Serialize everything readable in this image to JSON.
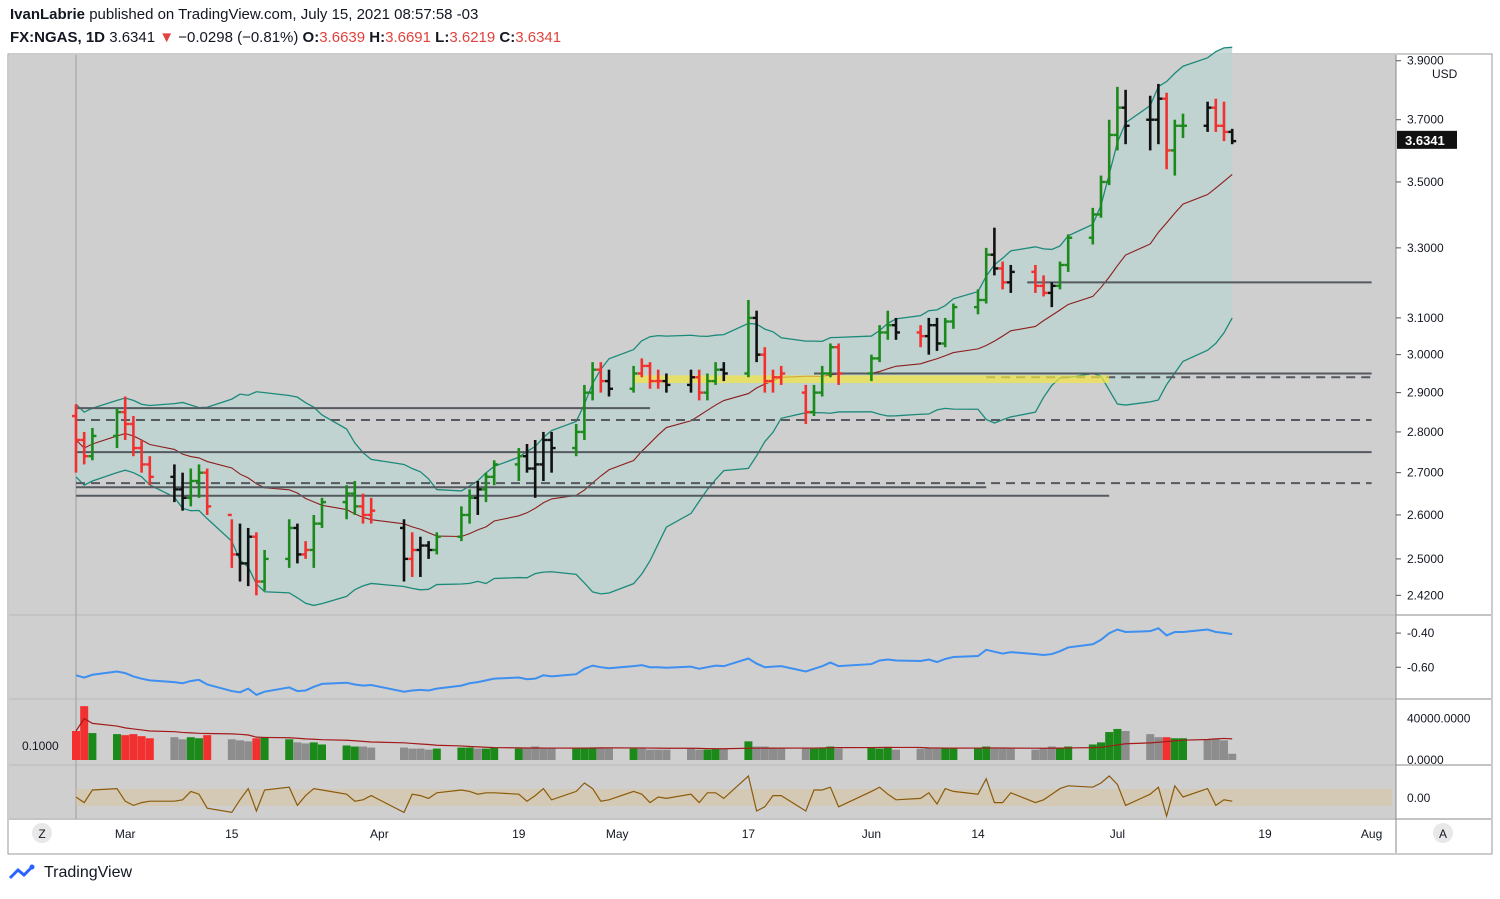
{
  "header": {
    "author": "IvanLabrie",
    "published": "published on TradingView.com, July 15, 2021 08:57:58 -03",
    "symbol": "FX:NGAS, 1D",
    "last": "3.6341",
    "change": "−0.0298 (−0.81%)",
    "o_label": "O:",
    "o_value": "3.6639",
    "h_label": "H:",
    "h_value": "3.6691",
    "l_label": "L:",
    "l_value": "3.6219",
    "c_label": "C:",
    "c_value": "3.6341"
  },
  "footer": {
    "brand": "TradingView"
  },
  "colors": {
    "bg": "#cfcfcf",
    "band_fill": "#bcd3cf",
    "band_line": "#1c8a7a",
    "basis": "#8c1f1f",
    "up": "#1b8a1b",
    "down": "#f23030",
    "neutral": "#111111",
    "hline": "#555a60",
    "osc": "#3d8ff0",
    "vol_avg": "#a31a1a",
    "osc2": "#8c5a0a"
  },
  "chart_data": {
    "type": "ohlc",
    "title": "FX:NGAS, 1D",
    "currency": "USD",
    "last_price_label": "3.6341",
    "y_ticks": [
      "3.9000",
      "3.7000",
      "3.5000",
      "3.3000",
      "3.1000",
      "3.0000",
      "2.9000",
      "2.8000",
      "2.7000",
      "2.6000",
      "2.5000",
      "2.4200"
    ],
    "x_ticks": [
      "Mar",
      "15",
      "Apr",
      "19",
      "May",
      "17",
      "Jun",
      "14",
      "Jul",
      "19",
      "Aug"
    ],
    "osc_ticks": [
      "-0.40",
      "-0.60"
    ],
    "volume_ticks": [
      "40000.0000",
      "0.0000"
    ],
    "volume_left_label": "0.1000",
    "osc2_ticks": [
      "0.00"
    ],
    "corner_labels": {
      "left": "Z",
      "right": "A"
    },
    "x_start": "2021-02-24",
    "hlines": [
      {
        "price": 2.86,
        "style": "solid",
        "from": "2021-02-24",
        "to": "2021-05-05"
      },
      {
        "price": 2.83,
        "style": "dashed",
        "from": "2021-02-24",
        "to": "2021-08-01"
      },
      {
        "price": 2.75,
        "style": "solid",
        "from": "2021-02-24",
        "to": "2021-08-01"
      },
      {
        "price": 2.675,
        "style": "dashed",
        "from": "2021-02-24",
        "to": "2021-08-01"
      },
      {
        "price": 2.665,
        "style": "solid",
        "from": "2021-02-24",
        "to": "2021-06-15"
      },
      {
        "price": 2.645,
        "style": "solid",
        "from": "2021-02-24",
        "to": "2021-06-30"
      },
      {
        "price": 3.2,
        "style": "solid",
        "from": "2021-06-20",
        "to": "2021-08-01"
      },
      {
        "price": 2.95,
        "style": "solid",
        "from": "2021-05-25",
        "to": "2021-08-01"
      },
      {
        "price": 2.94,
        "style": "dashed",
        "from": "2021-06-15",
        "to": "2021-08-01"
      }
    ],
    "series": [
      {
        "d": "2021-02-24",
        "o": 2.84,
        "h": 2.87,
        "l": 2.7,
        "c": 2.78,
        "t": "d",
        "v": 28000
      },
      {
        "d": "2021-02-25",
        "o": 2.78,
        "h": 2.8,
        "l": 2.72,
        "c": 2.74,
        "t": "d",
        "v": 52000
      },
      {
        "d": "2021-02-26",
        "o": 2.74,
        "h": 2.81,
        "l": 2.73,
        "c": 2.79,
        "t": "u",
        "v": 26000
      },
      {
        "d": "2021-03-01",
        "o": 2.79,
        "h": 2.86,
        "l": 2.76,
        "c": 2.85,
        "t": "u",
        "v": 25000
      },
      {
        "d": "2021-03-02",
        "o": 2.85,
        "h": 2.89,
        "l": 2.78,
        "c": 2.82,
        "t": "d",
        "v": 24000
      },
      {
        "d": "2021-03-03",
        "o": 2.82,
        "h": 2.84,
        "l": 2.74,
        "c": 2.76,
        "t": "d",
        "v": 25000
      },
      {
        "d": "2021-03-04",
        "o": 2.76,
        "h": 2.78,
        "l": 2.7,
        "c": 2.72,
        "t": "d",
        "v": 23000
      },
      {
        "d": "2021-03-05",
        "o": 2.72,
        "h": 2.74,
        "l": 2.67,
        "c": 2.69,
        "t": "d",
        "v": 21000
      },
      {
        "d": "2021-03-08",
        "o": 2.69,
        "h": 2.72,
        "l": 2.63,
        "c": 2.66,
        "t": "n",
        "v": 22000
      },
      {
        "d": "2021-03-09",
        "o": 2.66,
        "h": 2.7,
        "l": 2.61,
        "c": 2.64,
        "t": "n",
        "v": 20000
      },
      {
        "d": "2021-03-10",
        "o": 2.64,
        "h": 2.71,
        "l": 2.62,
        "c": 2.68,
        "t": "u",
        "v": 22000
      },
      {
        "d": "2021-03-11",
        "o": 2.68,
        "h": 2.72,
        "l": 2.64,
        "c": 2.7,
        "t": "u",
        "v": 21000
      },
      {
        "d": "2021-03-12",
        "o": 2.7,
        "h": 2.71,
        "l": 2.6,
        "c": 2.62,
        "t": "d",
        "v": 24000
      },
      {
        "d": "2021-03-15",
        "o": 2.6,
        "h": 2.59,
        "l": 2.48,
        "c": 2.51,
        "t": "d",
        "v": 20000
      },
      {
        "d": "2021-03-16",
        "o": 2.51,
        "h": 2.58,
        "l": 2.45,
        "c": 2.49,
        "t": "n",
        "v": 19000
      },
      {
        "d": "2021-03-17",
        "o": 2.49,
        "h": 2.57,
        "l": 2.44,
        "c": 2.55,
        "t": "n",
        "v": 18000
      },
      {
        "d": "2021-03-18",
        "o": 2.55,
        "h": 2.56,
        "l": 2.42,
        "c": 2.45,
        "t": "d",
        "v": 21000
      },
      {
        "d": "2021-03-19",
        "o": 2.45,
        "h": 2.52,
        "l": 2.43,
        "c": 2.5,
        "t": "u",
        "v": 22000
      },
      {
        "d": "2021-03-22",
        "o": 2.5,
        "h": 2.59,
        "l": 2.48,
        "c": 2.57,
        "t": "u",
        "v": 20000
      },
      {
        "d": "2021-03-23",
        "o": 2.57,
        "h": 2.58,
        "l": 2.49,
        "c": 2.51,
        "t": "n",
        "v": 17000
      },
      {
        "d": "2021-03-24",
        "o": 2.51,
        "h": 2.54,
        "l": 2.5,
        "c": 2.52,
        "t": "d",
        "v": 16000
      },
      {
        "d": "2021-03-25",
        "o": 2.52,
        "h": 2.6,
        "l": 2.48,
        "c": 2.58,
        "t": "u",
        "v": 17000
      },
      {
        "d": "2021-03-26",
        "o": 2.58,
        "h": 2.64,
        "l": 2.57,
        "c": 2.63,
        "t": "u",
        "v": 15000
      },
      {
        "d": "2021-03-29",
        "o": 2.63,
        "h": 2.67,
        "l": 2.59,
        "c": 2.65,
        "t": "u",
        "v": 14000
      },
      {
        "d": "2021-03-30",
        "o": 2.65,
        "h": 2.68,
        "l": 2.6,
        "c": 2.62,
        "t": "u",
        "v": 13000
      },
      {
        "d": "2021-03-31",
        "o": 2.62,
        "h": 2.65,
        "l": 2.58,
        "c": 2.6,
        "t": "d",
        "v": 13000
      },
      {
        "d": "2021-04-01",
        "o": 2.6,
        "h": 2.64,
        "l": 2.58,
        "c": 2.61,
        "t": "d",
        "v": 12000
      },
      {
        "d": "2021-04-05",
        "o": 2.57,
        "h": 2.59,
        "l": 2.45,
        "c": 2.5,
        "t": "n",
        "v": 12000
      },
      {
        "d": "2021-04-06",
        "o": 2.5,
        "h": 2.56,
        "l": 2.46,
        "c": 2.52,
        "t": "d",
        "v": 11000
      },
      {
        "d": "2021-04-07",
        "o": 2.52,
        "h": 2.55,
        "l": 2.46,
        "c": 2.53,
        "t": "n",
        "v": 11000
      },
      {
        "d": "2021-04-08",
        "o": 2.53,
        "h": 2.54,
        "l": 2.5,
        "c": 2.52,
        "t": "n",
        "v": 10000
      },
      {
        "d": "2021-04-09",
        "o": 2.52,
        "h": 2.56,
        "l": 2.51,
        "c": 2.55,
        "t": "u",
        "v": 11000
      },
      {
        "d": "2021-04-12",
        "o": 2.55,
        "h": 2.62,
        "l": 2.54,
        "c": 2.6,
        "t": "u",
        "v": 12000
      },
      {
        "d": "2021-04-13",
        "o": 2.6,
        "h": 2.66,
        "l": 2.58,
        "c": 2.64,
        "t": "u",
        "v": 12000
      },
      {
        "d": "2021-04-14",
        "o": 2.64,
        "h": 2.68,
        "l": 2.6,
        "c": 2.66,
        "t": "n",
        "v": 11000
      },
      {
        "d": "2021-04-15",
        "o": 2.66,
        "h": 2.7,
        "l": 2.63,
        "c": 2.69,
        "t": "u",
        "v": 11000
      },
      {
        "d": "2021-04-16",
        "o": 2.69,
        "h": 2.73,
        "l": 2.67,
        "c": 2.72,
        "t": "u",
        "v": 12000
      },
      {
        "d": "2021-04-19",
        "o": 2.72,
        "h": 2.76,
        "l": 2.68,
        "c": 2.74,
        "t": "u",
        "v": 11000
      },
      {
        "d": "2021-04-20",
        "o": 2.74,
        "h": 2.77,
        "l": 2.7,
        "c": 2.71,
        "t": "n",
        "v": 12000
      },
      {
        "d": "2021-04-21",
        "o": 2.71,
        "h": 2.78,
        "l": 2.64,
        "c": 2.72,
        "t": "n",
        "v": 13000
      },
      {
        "d": "2021-04-22",
        "o": 2.72,
        "h": 2.8,
        "l": 2.68,
        "c": 2.78,
        "t": "n",
        "v": 12000
      },
      {
        "d": "2021-04-23",
        "o": 2.78,
        "h": 2.8,
        "l": 2.7,
        "c": 2.76,
        "t": "n",
        "v": 12000
      },
      {
        "d": "2021-04-26",
        "o": 2.76,
        "h": 2.82,
        "l": 2.74,
        "c": 2.8,
        "t": "u",
        "v": 11000
      },
      {
        "d": "2021-04-27",
        "o": 2.8,
        "h": 2.92,
        "l": 2.78,
        "c": 2.9,
        "t": "u",
        "v": 12000
      },
      {
        "d": "2021-04-28",
        "o": 2.9,
        "h": 2.98,
        "l": 2.88,
        "c": 2.96,
        "t": "u",
        "v": 12000
      },
      {
        "d": "2021-04-29",
        "o": 2.96,
        "h": 2.98,
        "l": 2.9,
        "c": 2.93,
        "t": "d",
        "v": 12000
      },
      {
        "d": "2021-04-30",
        "o": 2.93,
        "h": 2.96,
        "l": 2.89,
        "c": 2.91,
        "t": "n",
        "v": 11000
      },
      {
        "d": "2021-05-03",
        "o": 2.91,
        "h": 2.97,
        "l": 2.9,
        "c": 2.95,
        "t": "u",
        "v": 11000
      },
      {
        "d": "2021-05-04",
        "o": 2.95,
        "h": 2.99,
        "l": 2.94,
        "c": 2.97,
        "t": "d",
        "v": 11000
      },
      {
        "d": "2021-05-05",
        "o": 2.97,
        "h": 2.98,
        "l": 2.91,
        "c": 2.93,
        "t": "d",
        "v": 10000
      },
      {
        "d": "2021-05-06",
        "o": 2.93,
        "h": 2.96,
        "l": 2.91,
        "c": 2.93,
        "t": "d",
        "v": 10000
      },
      {
        "d": "2021-05-07",
        "o": 2.93,
        "h": 2.95,
        "l": 2.9,
        "c": 2.92,
        "t": "n",
        "v": 10000
      },
      {
        "d": "2021-05-10",
        "o": 2.92,
        "h": 2.96,
        "l": 2.9,
        "c": 2.94,
        "t": "n",
        "v": 11000
      },
      {
        "d": "2021-05-11",
        "o": 2.94,
        "h": 2.96,
        "l": 2.88,
        "c": 2.9,
        "t": "d",
        "v": 10000
      },
      {
        "d": "2021-05-12",
        "o": 2.9,
        "h": 2.95,
        "l": 2.88,
        "c": 2.93,
        "t": "u",
        "v": 10000
      },
      {
        "d": "2021-05-13",
        "o": 2.93,
        "h": 2.98,
        "l": 2.92,
        "c": 2.96,
        "t": "u",
        "v": 11000
      },
      {
        "d": "2021-05-14",
        "o": 2.96,
        "h": 2.98,
        "l": 2.93,
        "c": 2.95,
        "t": "n",
        "v": 11000
      },
      {
        "d": "2021-05-17",
        "o": 2.95,
        "h": 3.15,
        "l": 2.94,
        "c": 3.1,
        "t": "u",
        "v": 18000
      },
      {
        "d": "2021-05-18",
        "o": 3.1,
        "h": 3.12,
        "l": 2.98,
        "c": 3.0,
        "t": "n",
        "v": 13000
      },
      {
        "d": "2021-05-19",
        "o": 3.0,
        "h": 3.02,
        "l": 2.9,
        "c": 2.93,
        "t": "d",
        "v": 13000
      },
      {
        "d": "2021-05-20",
        "o": 2.93,
        "h": 2.96,
        "l": 2.9,
        "c": 2.94,
        "t": "d",
        "v": 12000
      },
      {
        "d": "2021-05-21",
        "o": 2.94,
        "h": 2.97,
        "l": 2.92,
        "c": 2.95,
        "t": "d",
        "v": 11000
      },
      {
        "d": "2021-05-24",
        "o": 2.9,
        "h": 2.92,
        "l": 2.82,
        "c": 2.85,
        "t": "d",
        "v": 12000
      },
      {
        "d": "2021-05-25",
        "o": 2.85,
        "h": 2.92,
        "l": 2.84,
        "c": 2.9,
        "t": "u",
        "v": 11000
      },
      {
        "d": "2021-05-26",
        "o": 2.9,
        "h": 2.97,
        "l": 2.89,
        "c": 2.95,
        "t": "u",
        "v": 12000
      },
      {
        "d": "2021-05-27",
        "o": 2.95,
        "h": 3.03,
        "l": 2.94,
        "c": 3.02,
        "t": "u",
        "v": 13000
      },
      {
        "d": "2021-05-28",
        "o": 3.02,
        "h": 3.03,
        "l": 2.92,
        "c": 2.95,
        "t": "d",
        "v": 11000
      },
      {
        "d": "2021-06-01",
        "o": 2.95,
        "h": 3.0,
        "l": 2.93,
        "c": 2.99,
        "t": "u",
        "v": 12000
      },
      {
        "d": "2021-06-02",
        "o": 2.99,
        "h": 3.08,
        "l": 2.98,
        "c": 3.06,
        "t": "u",
        "v": 11000
      },
      {
        "d": "2021-06-03",
        "o": 3.06,
        "h": 3.12,
        "l": 3.04,
        "c": 3.08,
        "t": "u",
        "v": 12000
      },
      {
        "d": "2021-06-04",
        "o": 3.08,
        "h": 3.1,
        "l": 3.04,
        "c": 3.06,
        "t": "n",
        "v": 10000
      },
      {
        "d": "2021-06-07",
        "o": 3.06,
        "h": 3.08,
        "l": 3.02,
        "c": 3.05,
        "t": "d",
        "v": 11000
      },
      {
        "d": "2021-06-08",
        "o": 3.05,
        "h": 3.1,
        "l": 3.0,
        "c": 3.08,
        "t": "n",
        "v": 12000
      },
      {
        "d": "2021-06-09",
        "o": 3.08,
        "h": 3.1,
        "l": 3.01,
        "c": 3.03,
        "t": "n",
        "v": 11000
      },
      {
        "d": "2021-06-10",
        "o": 3.03,
        "h": 3.1,
        "l": 3.02,
        "c": 3.09,
        "t": "u",
        "v": 12000
      },
      {
        "d": "2021-06-11",
        "o": 3.09,
        "h": 3.14,
        "l": 3.07,
        "c": 3.13,
        "t": "u",
        "v": 11000
      },
      {
        "d": "2021-06-14",
        "o": 3.13,
        "h": 3.18,
        "l": 3.11,
        "c": 3.15,
        "t": "u",
        "v": 12000
      },
      {
        "d": "2021-06-15",
        "o": 3.15,
        "h": 3.3,
        "l": 3.14,
        "c": 3.28,
        "t": "u",
        "v": 13000
      },
      {
        "d": "2021-06-16",
        "o": 3.28,
        "h": 3.36,
        "l": 3.22,
        "c": 3.24,
        "t": "n",
        "v": 12000
      },
      {
        "d": "2021-06-17",
        "o": 3.24,
        "h": 3.26,
        "l": 3.18,
        "c": 3.2,
        "t": "d",
        "v": 11000
      },
      {
        "d": "2021-06-18",
        "o": 3.2,
        "h": 3.25,
        "l": 3.17,
        "c": 3.23,
        "t": "n",
        "v": 11000
      },
      {
        "d": "2021-06-21",
        "o": 3.23,
        "h": 3.25,
        "l": 3.17,
        "c": 3.19,
        "t": "d",
        "v": 10000
      },
      {
        "d": "2021-06-22",
        "o": 3.19,
        "h": 3.22,
        "l": 3.16,
        "c": 3.17,
        "t": "d",
        "v": 11000
      },
      {
        "d": "2021-06-23",
        "o": 3.17,
        "h": 3.2,
        "l": 3.13,
        "c": 3.19,
        "t": "n",
        "v": 13000
      },
      {
        "d": "2021-06-24",
        "o": 3.19,
        "h": 3.26,
        "l": 3.18,
        "c": 3.25,
        "t": "u",
        "v": 12000
      },
      {
        "d": "2021-06-25",
        "o": 3.25,
        "h": 3.34,
        "l": 3.23,
        "c": 3.33,
        "t": "u",
        "v": 13000
      },
      {
        "d": "2021-06-28",
        "o": 3.33,
        "h": 3.42,
        "l": 3.31,
        "c": 3.4,
        "t": "u",
        "v": 15000
      },
      {
        "d": "2021-06-29",
        "o": 3.4,
        "h": 3.52,
        "l": 3.39,
        "c": 3.5,
        "t": "u",
        "v": 17000
      },
      {
        "d": "2021-06-30",
        "o": 3.5,
        "h": 3.7,
        "l": 3.49,
        "c": 3.65,
        "t": "u",
        "v": 27000
      },
      {
        "d": "2021-07-01",
        "o": 3.65,
        "h": 3.81,
        "l": 3.6,
        "c": 3.74,
        "t": "u",
        "v": 30000
      },
      {
        "d": "2021-07-02",
        "o": 3.74,
        "h": 3.8,
        "l": 3.62,
        "c": 3.68,
        "t": "n",
        "v": 28000
      },
      {
        "d": "2021-07-05",
        "o": 3.7,
        "h": 3.78,
        "l": 3.6,
        "c": 3.7,
        "t": "n",
        "v": 25000
      },
      {
        "d": "2021-07-06",
        "o": 3.7,
        "h": 3.82,
        "l": 3.62,
        "c": 3.77,
        "t": "n",
        "v": 22000
      },
      {
        "d": "2021-07-07",
        "o": 3.77,
        "h": 3.79,
        "l": 3.54,
        "c": 3.6,
        "t": "d",
        "v": 22000
      },
      {
        "d": "2021-07-08",
        "o": 3.6,
        "h": 3.7,
        "l": 3.52,
        "c": 3.68,
        "t": "u",
        "v": 21000
      },
      {
        "d": "2021-07-09",
        "o": 3.68,
        "h": 3.72,
        "l": 3.64,
        "c": 3.68,
        "t": "u",
        "v": 21000
      },
      {
        "d": "2021-07-12",
        "o": 3.68,
        "h": 3.76,
        "l": 3.66,
        "c": 3.74,
        "t": "n",
        "v": 20000
      },
      {
        "d": "2021-07-13",
        "o": 3.74,
        "h": 3.77,
        "l": 3.66,
        "c": 3.68,
        "t": "d",
        "v": 20000
      },
      {
        "d": "2021-07-14",
        "o": 3.68,
        "h": 3.76,
        "l": 3.63,
        "c": 3.66,
        "t": "d",
        "v": 19000
      },
      {
        "d": "2021-07-15",
        "o": 3.66,
        "h": 3.67,
        "l": 3.62,
        "c": 3.63,
        "t": "n",
        "v": 6000
      }
    ]
  }
}
